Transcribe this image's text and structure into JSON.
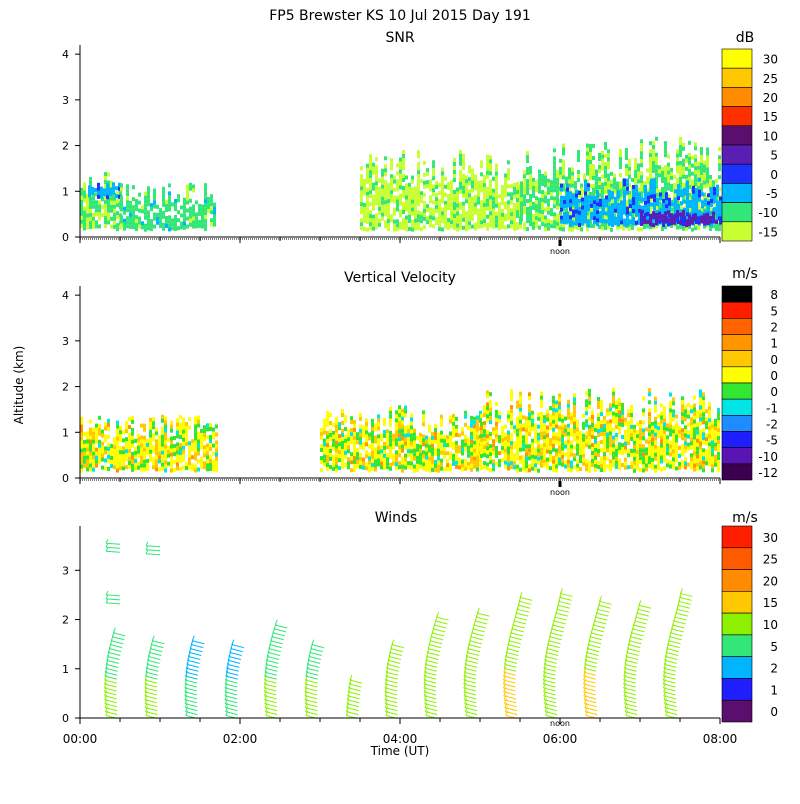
{
  "page_title": "FP5 Brewster KS  10 Jul 2015 Day 191",
  "shared_axes": {
    "ylabel": "Altitude (km)",
    "xlabel": "Time (UT)",
    "x_range_hours": [
      0,
      8
    ],
    "x_tick_labels": [
      {
        "hour": 0,
        "label": "00:00"
      },
      {
        "hour": 2,
        "label": "02:00"
      },
      {
        "hour": 4,
        "label": "04:00"
      },
      {
        "hour": 6,
        "label": "06:00"
      },
      {
        "hour": 8,
        "label": "08:00"
      }
    ],
    "noon_label": "noon",
    "noon_hour": 6
  },
  "chart_data": [
    {
      "type": "heatmap",
      "id": "snr",
      "title": "SNR",
      "units": "dB",
      "ylim": [
        0,
        4.2
      ],
      "y_ticks": [
        0,
        1,
        2,
        3,
        4
      ],
      "colorbar": {
        "labels": [
          "30",
          "25",
          "20",
          "15",
          "10",
          "5",
          "0",
          "-5",
          "-10",
          "-15"
        ],
        "colors": [
          "#ffff00",
          "#ffc800",
          "#ff8c00",
          "#ff3000",
          "#5a0f6e",
          "#5a1eb4",
          "#1e32ff",
          "#00b4ff",
          "#32e678",
          "#c8ff32"
        ]
      },
      "cells": [
        {
          "t": [
            0.0,
            0.5
          ],
          "z": [
            0.2,
            1.5
          ],
          "snr": -12
        },
        {
          "t": [
            0.1,
            0.5
          ],
          "z": [
            0.9,
            1.2
          ],
          "snr": -4
        },
        {
          "t": [
            0.5,
            1.7
          ],
          "z": [
            0.2,
            1.2
          ],
          "snr": -10
        },
        {
          "t": [
            3.5,
            5.5
          ],
          "z": [
            0.2,
            2.0
          ],
          "snr": -14
        },
        {
          "t": [
            5.5,
            8.0
          ],
          "z": [
            0.2,
            2.2
          ],
          "snr": -12
        },
        {
          "t": [
            6.0,
            8.0
          ],
          "z": [
            0.3,
            1.3
          ],
          "snr": -4
        },
        {
          "t": [
            7.0,
            8.0
          ],
          "z": [
            0.3,
            0.6
          ],
          "snr": 4
        }
      ]
    },
    {
      "type": "heatmap",
      "id": "vertical_velocity",
      "title": "Vertical Velocity",
      "units": "m/s",
      "ylim": [
        0,
        4.2
      ],
      "y_ticks": [
        0,
        1,
        2,
        3,
        4
      ],
      "colorbar": {
        "labels": [
          "8",
          "5",
          "2",
          "1",
          "0",
          "0",
          "0",
          "-1",
          "-2",
          "-5",
          "-10",
          "-12"
        ],
        "colors": [
          "#000000",
          "#ff1e00",
          "#ff6400",
          "#ff9600",
          "#ffc800",
          "#ffff00",
          "#32e632",
          "#00e6e6",
          "#1e8cff",
          "#1e1eff",
          "#5a14b4",
          "#3c0050"
        ]
      },
      "cells": [
        {
          "t": [
            0.0,
            1.7
          ],
          "z": [
            0.2,
            1.4
          ],
          "w": 0
        },
        {
          "t": [
            3.0,
            5.0
          ],
          "z": [
            0.2,
            1.6
          ],
          "w": 0
        },
        {
          "t": [
            5.0,
            8.0
          ],
          "z": [
            0.2,
            2.0
          ],
          "w": 0
        }
      ]
    },
    {
      "type": "scatter",
      "id": "winds",
      "title": "Winds",
      "units": "m/s",
      "ylim": [
        0,
        3.9
      ],
      "y_ticks": [
        0,
        1,
        2,
        3
      ],
      "colorbar": {
        "labels": [
          "30",
          "25",
          "20",
          "15",
          "10",
          "5",
          "2",
          "1",
          "0"
        ],
        "colors": [
          "#ff1e00",
          "#ff5a00",
          "#ff8c00",
          "#ffc800",
          "#8cf000",
          "#32e678",
          "#00b4ff",
          "#1e1eff",
          "#5a0f6e"
        ]
      },
      "profiles": [
        {
          "t": 0.5,
          "z_top": 1.8,
          "speed": 5
        },
        {
          "t": 1.0,
          "z_top": 1.6,
          "speed": 5
        },
        {
          "t": 1.5,
          "z_top": 1.6,
          "speed": 3
        },
        {
          "t": 2.0,
          "z_top": 1.5,
          "speed": 3
        },
        {
          "t": 2.5,
          "z_top": 1.9,
          "speed": 5
        },
        {
          "t": 3.0,
          "z_top": 1.5,
          "speed": 5
        },
        {
          "t": 3.5,
          "z_top": 0.8,
          "speed": 8
        },
        {
          "t": 4.0,
          "z_top": 1.5,
          "speed": 8
        },
        {
          "t": 4.5,
          "z_top": 2.1,
          "speed": 10
        },
        {
          "t": 5.0,
          "z_top": 2.2,
          "speed": 10
        },
        {
          "t": 5.5,
          "z_top": 2.5,
          "speed": 12
        },
        {
          "t": 6.0,
          "z_top": 2.6,
          "speed": 10
        },
        {
          "t": 6.5,
          "z_top": 2.4,
          "speed": 12
        },
        {
          "t": 7.0,
          "z_top": 2.3,
          "speed": 10
        },
        {
          "t": 7.5,
          "z_top": 2.6,
          "speed": 10
        }
      ],
      "isolated_barbs": [
        {
          "t": 0.4,
          "z": 3.55,
          "speed": 5
        },
        {
          "t": 0.9,
          "z": 3.5,
          "speed": 5
        },
        {
          "t": 0.4,
          "z": 2.5,
          "speed": 5
        }
      ]
    }
  ]
}
